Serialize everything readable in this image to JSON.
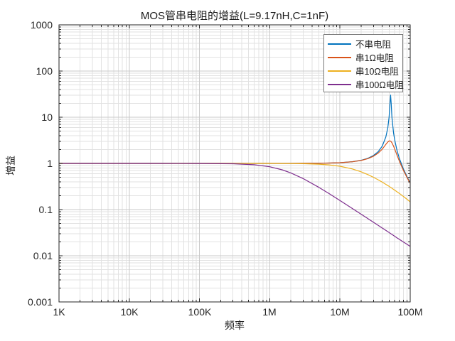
{
  "title": "MOS管串电阻的增益(L=9.17nH,C=1nF)",
  "x_axis": {
    "label": "频率",
    "tick_labels": [
      "1K",
      "10K",
      "100K",
      "1M",
      "10M",
      "100M"
    ]
  },
  "y_axis": {
    "label": "增益",
    "tick_labels": [
      "1000",
      "100",
      "10",
      "1",
      "0.1",
      "0.01",
      "0.001"
    ]
  },
  "legend_position": "top-right-inside",
  "chart_data": {
    "type": "line",
    "title": "MOS管串电阻的增益(L=9.17nH,C=1nF)",
    "xlabel": "频率",
    "ylabel": "增益",
    "x_scale": "log",
    "y_scale": "log",
    "xlim": [
      1000,
      100000000
    ],
    "ylim": [
      0.001,
      1000
    ],
    "grid": "major+minor",
    "x_hz": [
      1000,
      3000,
      10000,
      30000,
      100000,
      300000,
      600000,
      1000000,
      1500000,
      2000000,
      3000000,
      5000000,
      7000000,
      10000000,
      15000000,
      20000000,
      25000000,
      30000000,
      35000000,
      40000000,
      45000000,
      48000000,
      50000000,
      51500000,
      52600000,
      53500000,
      55000000,
      58000000,
      60000000,
      65000000,
      70000000,
      80000000,
      90000000,
      100000000
    ],
    "series": [
      {
        "name": "不串电阻",
        "color": "#0072BD",
        "values": [
          1,
          1,
          1,
          1,
          1,
          1,
          1.0001,
          1.0004,
          1.0008,
          1.0015,
          1.0033,
          1.0091,
          1.0181,
          1.0375,
          1.0887,
          1.1693,
          1.2924,
          1.4827,
          1.7959,
          2.3726,
          3.7255,
          5.9305,
          10.005,
          19.5,
          30.22,
          20.23,
          9.88,
          4.527,
          3.272,
          1.883,
          1.29,
          0.759,
          0.517,
          0.382
        ]
      },
      {
        "name": "串1Ω电阻",
        "color": "#D95319",
        "values": [
          1,
          1,
          1,
          1,
          1,
          1,
          1.0001,
          1.0003,
          1.0008,
          1.0014,
          1.0031,
          1.0086,
          1.017,
          1.0353,
          1.083,
          1.1569,
          1.2666,
          1.4285,
          1.6712,
          2.0405,
          2.5718,
          2.9053,
          3.047,
          3.0672,
          3.0256,
          2.9576,
          2.7898,
          2.3551,
          2.0667,
          1.4952,
          1.1233,
          0.7094,
          0.4967,
          0.3711
        ]
      },
      {
        "name": "串10Ω电阻",
        "color": "#EDB120",
        "values": [
          1,
          1,
          1,
          1,
          1,
          0.9999,
          0.9994,
          0.9984,
          0.9964,
          0.9936,
          0.9858,
          0.962,
          0.9292,
          0.8692,
          0.7599,
          0.6579,
          0.5711,
          0.4995,
          0.4408,
          0.3924,
          0.3521,
          0.3311,
          0.3182,
          0.309,
          0.3026,
          0.2975,
          0.2892,
          0.2739,
          0.2644,
          0.2428,
          0.2239,
          0.1924,
          0.1673,
          0.1469
        ]
      },
      {
        "name": "串100Ω电阻",
        "color": "#7E2F8E",
        "values": [
          1,
          1,
          1,
          0.9998,
          0.998,
          0.9827,
          0.9358,
          0.847,
          0.728,
          0.623,
          0.469,
          0.3036,
          0.2219,
          0.1573,
          0.1056,
          0.0794,
          0.0636,
          0.053,
          0.0455,
          0.0398,
          0.0354,
          0.0332,
          0.0318,
          0.0309,
          0.0303,
          0.0297,
          0.0289,
          0.0274,
          0.0265,
          0.0243,
          0.0227,
          0.0199,
          0.0177,
          0.0159
        ]
      }
    ]
  },
  "style": {
    "grid_minor_color": "#e2e2e2",
    "grid_major_color": "#c9c9c9",
    "axis_color": "#262626",
    "background": "#ffffff"
  }
}
